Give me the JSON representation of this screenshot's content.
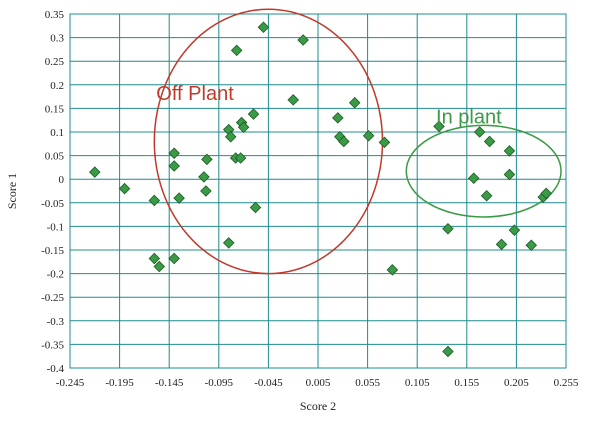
{
  "chart_data": {
    "type": "scatter",
    "xlabel": "Score 2",
    "ylabel": "Score 1",
    "xlim": [
      -0.245,
      0.255
    ],
    "ylim": [
      -0.4,
      0.35
    ],
    "x_ticks": [
      -0.245,
      -0.195,
      -0.145,
      -0.095,
      -0.045,
      0.005,
      0.055,
      0.105,
      0.155,
      0.205,
      0.255
    ],
    "x_tick_labels": [
      "-0.245",
      "-0.195",
      "-0.145",
      "-0.095",
      "-0.045",
      "0.005",
      "0.055",
      "0.105",
      "0.155",
      "0.205",
      "0.255"
    ],
    "y_ticks": [
      -0.4,
      -0.35,
      -0.3,
      -0.25,
      -0.2,
      -0.15,
      -0.1,
      -0.05,
      0,
      0.05,
      0.1,
      0.15,
      0.2,
      0.25,
      0.3,
      0.35
    ],
    "y_tick_labels": [
      "-0.4",
      "-0.35",
      "-0.3",
      "-0.25",
      "-0.2",
      "-0.15",
      "-0.1",
      "-0.05",
      "0",
      "0.05",
      "0.1",
      "0.15",
      "0.2",
      "0.25",
      "0.3",
      "0.35"
    ],
    "grid": true,
    "point_color": "#3a9a45",
    "grid_color": "#1f8c8c",
    "points": [
      [
        -0.22,
        0.015
      ],
      [
        -0.19,
        -0.02
      ],
      [
        -0.16,
        -0.045
      ],
      [
        -0.16,
        -0.168
      ],
      [
        -0.155,
        -0.185
      ],
      [
        -0.14,
        -0.168
      ],
      [
        -0.14,
        0.055
      ],
      [
        -0.14,
        0.028
      ],
      [
        -0.135,
        -0.04
      ],
      [
        -0.11,
        0.005
      ],
      [
        -0.108,
        -0.025
      ],
      [
        -0.107,
        0.042
      ],
      [
        -0.085,
        0.105
      ],
      [
        -0.083,
        0.09
      ],
      [
        -0.085,
        -0.135
      ],
      [
        -0.078,
        0.045
      ],
      [
        -0.077,
        0.273
      ],
      [
        -0.073,
        0.045
      ],
      [
        -0.072,
        0.12
      ],
      [
        -0.07,
        0.11
      ],
      [
        -0.06,
        0.138
      ],
      [
        -0.058,
        -0.06
      ],
      [
        -0.05,
        0.322
      ],
      [
        -0.02,
        0.168
      ],
      [
        -0.01,
        0.295
      ],
      [
        0.025,
        0.13
      ],
      [
        0.027,
        0.09
      ],
      [
        0.031,
        0.08
      ],
      [
        0.042,
        0.162
      ],
      [
        0.056,
        0.092
      ],
      [
        0.072,
        0.078
      ],
      [
        0.08,
        -0.192
      ],
      [
        0.127,
        0.112
      ],
      [
        0.136,
        -0.105
      ],
      [
        0.136,
        -0.365
      ],
      [
        0.162,
        0.002
      ],
      [
        0.168,
        0.1
      ],
      [
        0.175,
        -0.035
      ],
      [
        0.178,
        0.08
      ],
      [
        0.19,
        -0.138
      ],
      [
        0.198,
        0.06
      ],
      [
        0.198,
        0.01
      ],
      [
        0.203,
        -0.108
      ],
      [
        0.22,
        -0.14
      ],
      [
        0.232,
        -0.038
      ],
      [
        0.235,
        -0.03
      ]
    ],
    "annotations": [
      {
        "text": "Off Plant",
        "color": "#c0392b"
      },
      {
        "text": "In plant",
        "color": "#3a9a45"
      }
    ]
  }
}
